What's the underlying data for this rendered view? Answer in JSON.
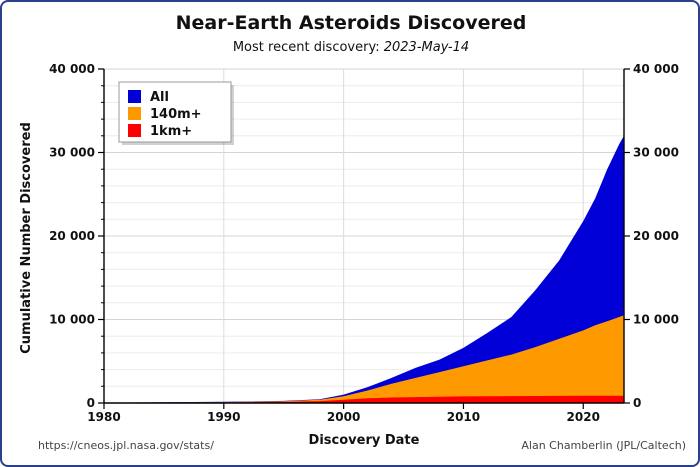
{
  "chart_data": {
    "type": "area",
    "title": "Near-Earth Asteroids Discovered",
    "subtitle_prefix": "Most recent discovery: ",
    "subtitle_date": "2023-May-14",
    "xlabel": "Discovery Date",
    "ylabel": "Cumulative Number Discovered",
    "xlim": [
      1980,
      2023.4
    ],
    "ylim": [
      0,
      40000
    ],
    "x_ticks": [
      1980,
      1990,
      2000,
      2010,
      2020
    ],
    "y_ticks": [
      0,
      10000,
      20000,
      30000,
      40000
    ],
    "y_tick_labels": [
      "0",
      "10 000",
      "20 000",
      "30 000",
      "40 000"
    ],
    "stacked": false,
    "grid": true,
    "legend_position": "top-left",
    "x": [
      1980,
      1985,
      1990,
      1995,
      1998,
      2000,
      2002,
      2004,
      2006,
      2008,
      2010,
      2012,
      2014,
      2016,
      2018,
      2020,
      2021,
      2022,
      2023,
      2023.4
    ],
    "series": [
      {
        "name": "All",
        "color": "#0000d6",
        "values": [
          40,
          80,
          140,
          250,
          450,
          1000,
          1900,
          3000,
          4200,
          5200,
          6600,
          8400,
          10300,
          13500,
          17100,
          21800,
          24500,
          28000,
          31000,
          32000
        ]
      },
      {
        "name": "140m+",
        "color": "#ff9900",
        "values": [
          30,
          60,
          110,
          200,
          380,
          800,
          1500,
          2300,
          3000,
          3700,
          4400,
          5100,
          5800,
          6700,
          7700,
          8700,
          9300,
          9800,
          10300,
          10500
        ]
      },
      {
        "name": "1km+",
        "color": "#ff0000",
        "values": [
          20,
          40,
          70,
          130,
          230,
          400,
          560,
          660,
          710,
          750,
          790,
          810,
          825,
          840,
          850,
          860,
          865,
          868,
          870,
          872
        ]
      }
    ]
  },
  "footer": {
    "source_url": "https://cneos.jpl.nasa.gov/stats/",
    "credit": "Alan Chamberlin (JPL/Caltech)"
  }
}
